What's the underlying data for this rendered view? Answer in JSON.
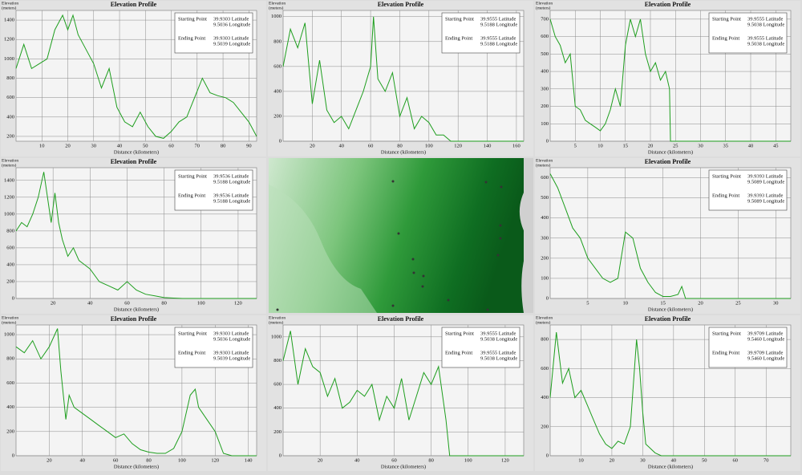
{
  "chart_data": [
    {
      "type": "line",
      "title": "Elevation Profile",
      "ylabel": [
        "Elevation",
        "(meters)"
      ],
      "xlabel": "Distance (kilometers)",
      "start_label": "Starting Point",
      "start": [
        "39.9303 Latitude",
        "9.5036 Longitude"
      ],
      "end_label": "Ending Point",
      "end": [
        "39.9303 Latitude",
        "9.5039 Longitude"
      ],
      "color": "#1e9e1e",
      "grid": true,
      "xlim": [
        0,
        93
      ],
      "xticks": [
        10,
        20,
        30,
        40,
        50,
        60,
        70,
        80,
        90
      ],
      "ylim": [
        150,
        1500
      ],
      "yticks": [
        200,
        400,
        600,
        800,
        1000,
        1200,
        1400
      ],
      "x": [
        0,
        3,
        6,
        9,
        12,
        15,
        18,
        20,
        22,
        24,
        27,
        30,
        33,
        36,
        39,
        42,
        45,
        48,
        51,
        54,
        57,
        60,
        63,
        66,
        69,
        72,
        75,
        78,
        81,
        84,
        87,
        90,
        93
      ],
      "values": [
        900,
        1150,
        900,
        950,
        1000,
        1300,
        1450,
        1300,
        1450,
        1250,
        1100,
        950,
        700,
        900,
        500,
        350,
        300,
        450,
        300,
        200,
        180,
        250,
        350,
        400,
        600,
        800,
        650,
        620,
        600,
        550,
        450,
        350,
        200
      ]
    },
    {
      "type": "line",
      "title": "Elevation Profile",
      "ylabel": [
        "Elevation",
        "(meters)"
      ],
      "xlabel": "Distance (kilometers)",
      "start_label": "Starting Point",
      "start": [
        "39.9555 Latitude",
        "9.5188 Longitude"
      ],
      "end_label": "Ending Point",
      "end": [
        "39.9555 Latitude",
        "9.5188 Longitude"
      ],
      "color": "#1e9e1e",
      "grid": true,
      "xlim": [
        0,
        165
      ],
      "xticks": [
        20,
        40,
        60,
        80,
        100,
        120,
        140,
        160
      ],
      "ylim": [
        0,
        1050
      ],
      "yticks": [
        0,
        200,
        400,
        600,
        800,
        1000
      ],
      "x": [
        0,
        5,
        10,
        15,
        20,
        25,
        30,
        35,
        40,
        45,
        50,
        55,
        60,
        62,
        65,
        70,
        75,
        80,
        85,
        90,
        95,
        100,
        105,
        110,
        115,
        120,
        140,
        165
      ],
      "values": [
        600,
        900,
        750,
        950,
        300,
        650,
        250,
        150,
        200,
        100,
        250,
        400,
        600,
        1000,
        500,
        400,
        550,
        200,
        350,
        100,
        200,
        150,
        50,
        50,
        0,
        0,
        0,
        0
      ]
    },
    {
      "type": "line",
      "title": "Elevation Profile",
      "ylabel": [
        "Elevation",
        "(meters)"
      ],
      "xlabel": "Distance (kilometers)",
      "start_label": "Starting Point",
      "start": [
        "39.9555 Latitude",
        "9.5038 Longitude"
      ],
      "end_label": "Ending Point",
      "end": [
        "39.9555 Latitude",
        "9.5038 Longitude"
      ],
      "color": "#1e9e1e",
      "grid": true,
      "xlim": [
        0,
        48
      ],
      "xticks": [
        5,
        10,
        15,
        20,
        25,
        30,
        35,
        40,
        45
      ],
      "ylim": [
        0,
        750
      ],
      "yticks": [
        0,
        100,
        200,
        300,
        400,
        500,
        600,
        700
      ],
      "x": [
        0,
        1,
        2,
        3,
        4,
        5,
        6,
        7,
        8,
        9,
        10,
        11,
        12,
        13,
        14,
        15,
        16,
        17,
        18,
        19,
        20,
        21,
        22,
        23,
        23.8,
        24,
        30,
        40,
        48
      ],
      "values": [
        700,
        600,
        550,
        450,
        500,
        200,
        180,
        120,
        100,
        80,
        60,
        100,
        180,
        300,
        200,
        550,
        700,
        600,
        700,
        500,
        400,
        450,
        350,
        400,
        300,
        0,
        0,
        0,
        0
      ]
    },
    {
      "type": "line",
      "title": "Elevation Profile",
      "ylabel": [
        "Elevation",
        "(meters)"
      ],
      "xlabel": "Distance (kilometers)",
      "start_label": "Starting Point",
      "start": [
        "39.9536 Latitude",
        "9.5188 Longitude"
      ],
      "end_label": "Ending Point",
      "end": [
        "39.9536 Latitude",
        "9.5188 Longitude"
      ],
      "color": "#1e9e1e",
      "grid": true,
      "xlim": [
        0,
        130
      ],
      "xticks": [
        20,
        40,
        60,
        80,
        100,
        120
      ],
      "ylim": [
        0,
        1550
      ],
      "yticks": [
        0,
        200,
        400,
        600,
        800,
        1000,
        1200,
        1400
      ],
      "x": [
        0,
        3,
        6,
        9,
        12,
        15,
        17,
        19,
        21,
        23,
        25,
        28,
        31,
        34,
        37,
        40,
        45,
        50,
        55,
        60,
        65,
        70,
        75,
        80,
        85,
        90,
        100,
        130
      ],
      "values": [
        800,
        900,
        850,
        1000,
        1200,
        1500,
        1200,
        900,
        1250,
        900,
        700,
        500,
        600,
        450,
        400,
        350,
        200,
        150,
        100,
        200,
        100,
        50,
        30,
        10,
        5,
        0,
        0,
        0
      ]
    },
    {
      "type": "line",
      "title": "Elevation Profile",
      "ylabel": [
        "Elevation",
        "(meters)"
      ],
      "xlabel": "Distance (kilometers)",
      "start_label": "Starting Point",
      "start": [
        "39.9393 Latitude",
        "9.5089 Longitude"
      ],
      "end_label": "Ending Point",
      "end": [
        "39.9393 Latitude",
        "9.5089 Longitude"
      ],
      "color": "#1e9e1e",
      "grid": true,
      "xlim": [
        0,
        32
      ],
      "xticks": [
        5,
        10,
        15,
        20,
        25,
        30
      ],
      "ylim": [
        0,
        650
      ],
      "yticks": [
        0,
        100,
        200,
        300,
        400,
        500,
        600
      ],
      "x": [
        0,
        1,
        2,
        3,
        4,
        5,
        6,
        7,
        8,
        9,
        10,
        11,
        12,
        13,
        14,
        15,
        16,
        17,
        17.5,
        18,
        20,
        25,
        32
      ],
      "values": [
        620,
        550,
        450,
        350,
        300,
        200,
        150,
        100,
        80,
        100,
        330,
        300,
        150,
        80,
        30,
        10,
        10,
        20,
        60,
        0,
        0,
        0,
        0
      ]
    },
    {
      "type": "line",
      "title": "Elevation Profile",
      "ylabel": [
        "Elevation",
        "(meters)"
      ],
      "xlabel": "Distance (kilometers)",
      "start_label": "Starting Point",
      "start": [
        "39.9303 Latitude",
        "9.5036 Longitude"
      ],
      "end_label": "Ending Point",
      "end": [
        "39.9303 Latitude",
        "9.5039 Longitude"
      ],
      "color": "#1e9e1e",
      "grid": true,
      "xlim": [
        0,
        145
      ],
      "xticks": [
        20,
        40,
        60,
        80,
        100,
        120,
        140
      ],
      "ylim": [
        0,
        1080
      ],
      "yticks": [
        0,
        200,
        400,
        600,
        800,
        1000
      ],
      "x": [
        0,
        5,
        10,
        15,
        20,
        25,
        27,
        30,
        32,
        35,
        40,
        45,
        50,
        55,
        60,
        65,
        70,
        75,
        80,
        85,
        90,
        95,
        100,
        105,
        108,
        110,
        115,
        120,
        125,
        130,
        145
      ],
      "values": [
        900,
        850,
        950,
        800,
        900,
        1050,
        700,
        300,
        500,
        400,
        350,
        300,
        250,
        200,
        150,
        180,
        100,
        50,
        30,
        20,
        20,
        60,
        200,
        500,
        550,
        400,
        300,
        200,
        20,
        0,
        0
      ]
    },
    {
      "type": "line",
      "title": "Elevation Profile",
      "ylabel": [
        "Elevation",
        "(meters)"
      ],
      "xlabel": "Distance (kilometers)",
      "start_label": "Starting Point",
      "start": [
        "39.9555 Latitude",
        "9.5038 Longitude"
      ],
      "end_label": "Ending Point",
      "end": [
        "39.9555 Latitude",
        "9.5038 Longitude"
      ],
      "color": "#1e9e1e",
      "grid": true,
      "xlim": [
        0,
        130
      ],
      "xticks": [
        20,
        40,
        60,
        80,
        100,
        120
      ],
      "ylim": [
        0,
        1100
      ],
      "yticks": [
        0,
        200,
        400,
        600,
        800,
        1000
      ],
      "x": [
        0,
        4,
        8,
        12,
        16,
        20,
        24,
        28,
        32,
        36,
        40,
        44,
        48,
        52,
        56,
        60,
        64,
        68,
        72,
        76,
        80,
        84,
        88,
        90,
        95,
        130
      ],
      "values": [
        800,
        1050,
        600,
        900,
        750,
        700,
        500,
        650,
        400,
        450,
        550,
        500,
        600,
        300,
        500,
        400,
        650,
        300,
        500,
        700,
        600,
        750,
        300,
        0,
        0,
        0
      ]
    },
    {
      "type": "line",
      "title": "Elevation Profile",
      "ylabel": [
        "Elevation",
        "(meters)"
      ],
      "xlabel": "Distance (kilometers)",
      "start_label": "Starting Point",
      "start": [
        "39.9709 Latitude",
        "9.5460 Longitude"
      ],
      "end_label": "Ending Point",
      "end": [
        "39.9709 Latitude",
        "9.5460 Longitude"
      ],
      "color": "#1e9e1e",
      "grid": true,
      "xlim": [
        0,
        78
      ],
      "xticks": [
        10,
        20,
        30,
        40,
        50,
        60,
        70
      ],
      "ylim": [
        0,
        900
      ],
      "yticks": [
        0,
        200,
        400,
        600,
        800
      ],
      "x": [
        0,
        2,
        4,
        6,
        8,
        10,
        12,
        14,
        16,
        18,
        20,
        22,
        24,
        26,
        28,
        29,
        30,
        31,
        32,
        34,
        36,
        40,
        60,
        78
      ],
      "values": [
        400,
        850,
        500,
        600,
        400,
        450,
        350,
        250,
        150,
        80,
        50,
        100,
        80,
        200,
        800,
        600,
        300,
        80,
        60,
        20,
        0,
        0,
        0,
        0
      ]
    }
  ]
}
